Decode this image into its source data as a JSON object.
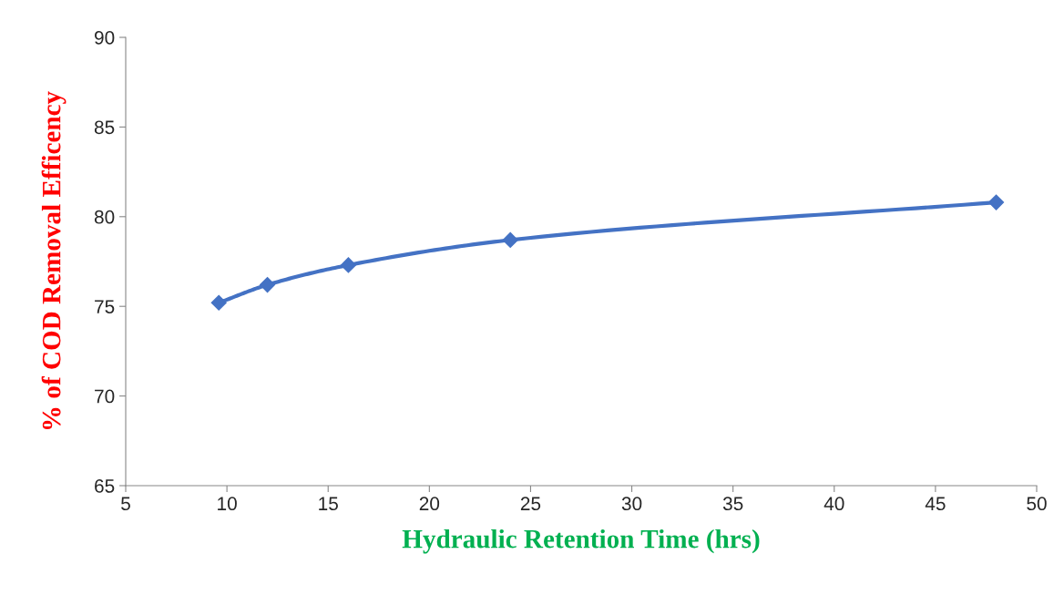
{
  "chart_data": {
    "type": "line",
    "xlabel": "Hydraulic Retention Time (hrs)",
    "ylabel": "% of COD Removal Efficency",
    "x": [
      9.6,
      12,
      16,
      24,
      48
    ],
    "series": [
      {
        "color": "#4472c4",
        "values": [
          75.2,
          76.2,
          77.3,
          78.7,
          80.8
        ]
      }
    ],
    "xlim": [
      5,
      50
    ],
    "xticks": [
      5,
      10,
      15,
      20,
      25,
      30,
      35,
      40,
      45,
      50
    ],
    "ylim": [
      65,
      90
    ],
    "yticks": [
      65,
      70,
      75,
      80,
      85,
      90
    ],
    "grid": false,
    "marker": "diamond",
    "line_style": "solid"
  }
}
